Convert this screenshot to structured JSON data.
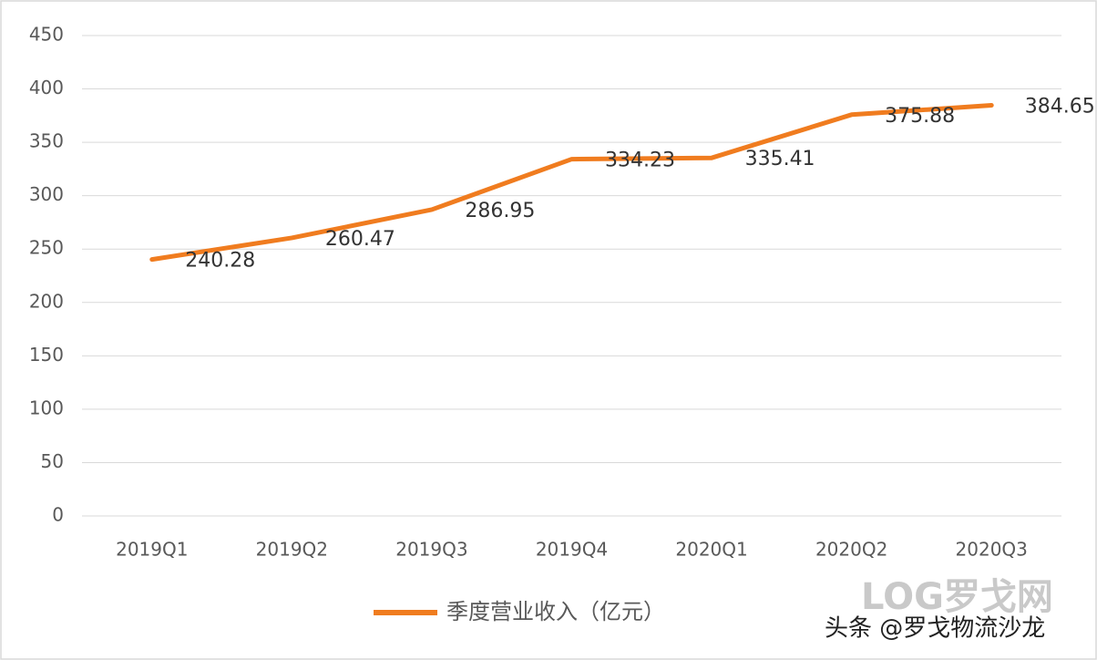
{
  "chart_data": {
    "type": "line",
    "categories": [
      "2019Q1",
      "2019Q2",
      "2019Q3",
      "2019Q4",
      "2020Q1",
      "2020Q2",
      "2020Q3"
    ],
    "series": [
      {
        "name": "季度营业收入（亿元）",
        "color": "#f07c1f",
        "values": [
          240.28,
          260.47,
          286.95,
          334.23,
          335.41,
          375.88,
          384.65
        ]
      }
    ],
    "ylim": [
      0,
      450
    ],
    "yticks": [
      0,
      50,
      100,
      150,
      200,
      250,
      300,
      350,
      400,
      450
    ],
    "grid": true
  },
  "watermark": {
    "logo": "LOG罗戈网",
    "credit": "头条 @罗戈物流沙龙"
  }
}
